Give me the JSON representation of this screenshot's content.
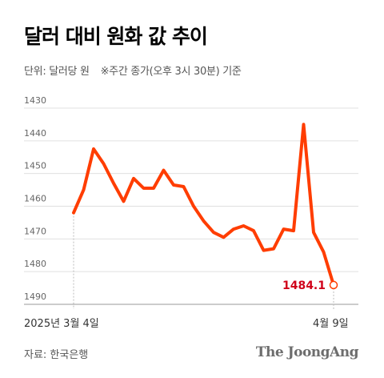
{
  "header": {
    "title": "달러 대비 원화 값 추이",
    "unit_label": "단위: 달러당 원",
    "note": "※주간 종가(오후 3시 30분) 기준"
  },
  "footer": {
    "source": "자료: 한국은행",
    "brand": "The JoongAng"
  },
  "colors": {
    "line": "#ff3d00",
    "end_label": "#d0021b",
    "grid": "#e0e0e0",
    "axis_text": "#666666"
  },
  "chart_data": {
    "type": "line",
    "title": "달러 대비 원화 값 추이",
    "ylabel": "단위: 달러당 원",
    "y_reversed": true,
    "ylim": [
      1430,
      1490
    ],
    "yticks": [
      1430,
      1440,
      1450,
      1460,
      1470,
      1480,
      1490
    ],
    "x_tick_labels": [
      "2025년 3월 4일",
      "4월 9일"
    ],
    "grid": true,
    "series": [
      {
        "values": [
          1462,
          1455,
          1442.5,
          1447,
          1453,
          1458.5,
          1451.5,
          1454.5,
          1454.5,
          1449,
          1453.5,
          1454,
          1460,
          1464.5,
          1468,
          1469.5,
          1467,
          1466,
          1467.5,
          1473.5,
          1473,
          1467,
          1467.5,
          1435,
          1468,
          1474,
          1484.1
        ]
      }
    ],
    "end_label": "1484.1"
  }
}
